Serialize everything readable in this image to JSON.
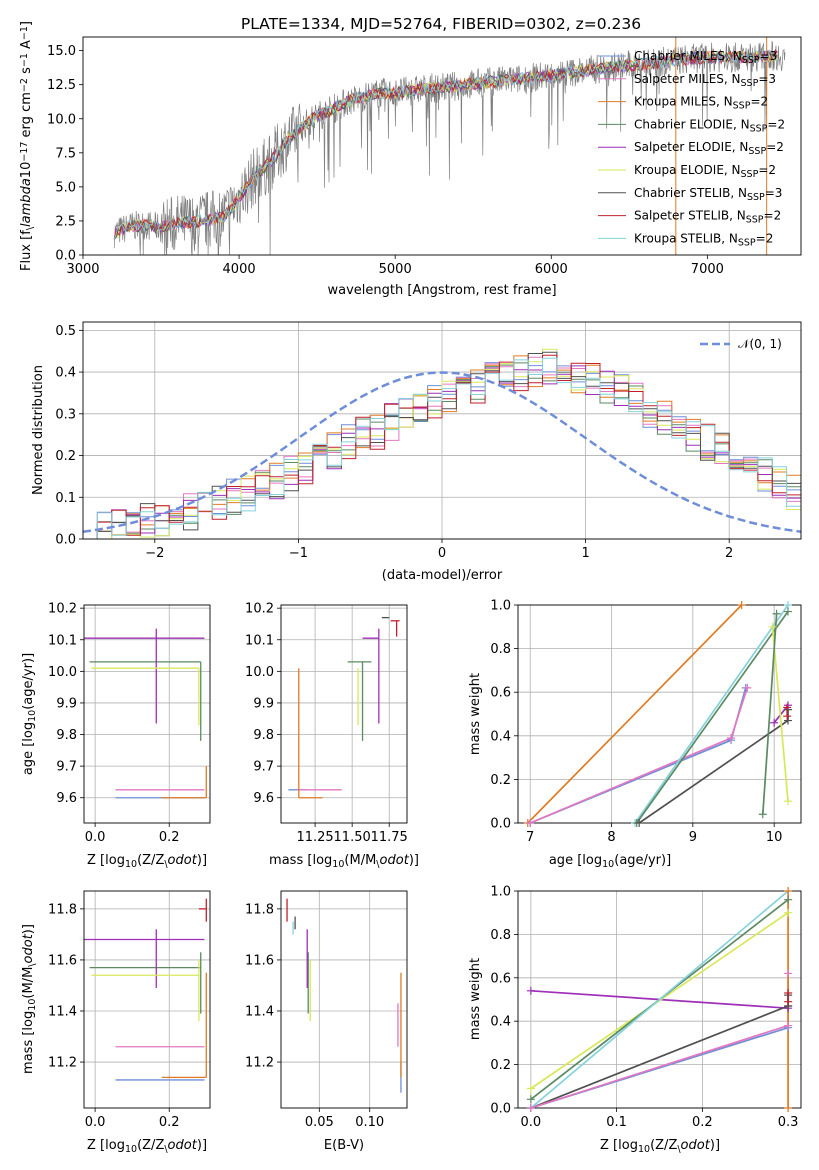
{
  "figure": {
    "title": "PLATE=1334, MJD=52764, FIBERID=0302, z=0.236"
  },
  "models": [
    {
      "name": "Chabrier MILES, N$_{SSP}$=3",
      "label": "Chabrier MILES, N",
      "n": "=3",
      "color": "#6f8ed9"
    },
    {
      "name": "Salpeter MILES, N$_{SSP}$=3",
      "label": "Salpeter MILES, N",
      "n": "=3",
      "color": "#e377c2"
    },
    {
      "name": "Kroupa MILES, N$_{SSP}$=2",
      "label": "Kroupa MILES, N",
      "n": "=2",
      "color": "#e07b24"
    },
    {
      "name": "Chabrier ELODIE, N$_{SSP}$=2",
      "label": "Chabrier ELODIE, N",
      "n": "=2",
      "color": "#5b8a63"
    },
    {
      "name": "Salpeter ELODIE, N$_{SSP}$=2",
      "label": "Salpeter ELODIE, N",
      "n": "=2",
      "color": "#9e2fb8"
    },
    {
      "name": "Kroupa ELODIE, N$_{SSP}$=2",
      "label": "Kroupa ELODIE, N",
      "n": "=2",
      "color": "#d8e85a"
    },
    {
      "name": "Chabrier STELIB, N$_{SSP}$=3",
      "label": "Chabrier STELIB, N",
      "n": "=3",
      "color": "#505050"
    },
    {
      "name": "Salpeter STELIB, N$_{SSP}$=2",
      "label": "Salpeter STELIB, N",
      "n": "=2",
      "color": "#c0202a"
    },
    {
      "name": "Kroupa STELIB, N$_{SSP}$=2",
      "label": "Kroupa STELIB, N",
      "n": "=2",
      "color": "#85d2dc"
    }
  ],
  "chart_data": [
    {
      "id": "spectrum",
      "type": "line",
      "xlabel": "wavelength [Angstrom, rest frame]",
      "ylabel": "Flux [f$_\\lambda$10$^{-17}$ erg cm$^{-2}$ s$^{-1}$ A$^{-1}$]",
      "xlim": [
        3000,
        7600
      ],
      "ylim": [
        0,
        16
      ],
      "xticks": [
        "3000",
        "4000",
        "5000",
        "6000",
        "7000"
      ],
      "yticks": [
        "0.0",
        "2.5",
        "5.0",
        "7.5",
        "10.0",
        "12.5",
        "15.0"
      ],
      "grid": false,
      "legend": "top-right",
      "data_color": "#7f7f7f",
      "continuum": {
        "x": [
          3200,
          3300,
          3400,
          3500,
          3600,
          3700,
          3800,
          3900,
          4000,
          4100,
          4200,
          4300,
          4400,
          4500,
          4600,
          4700,
          4800,
          4900,
          5000,
          5200,
          5400,
          5600,
          5800,
          6000,
          6200,
          6400,
          6600,
          6800,
          7000,
          7200,
          7400
        ],
        "y": [
          1.6,
          2.1,
          2.2,
          2.0,
          2.3,
          2.4,
          2.6,
          2.8,
          4.2,
          5.8,
          6.8,
          8.3,
          9.4,
          10.2,
          10.7,
          11.3,
          11.6,
          11.9,
          11.9,
          12.2,
          12.4,
          12.7,
          12.9,
          13.2,
          13.5,
          13.8,
          14.0,
          14.3,
          14.5,
          14.5,
          14.6
        ]
      },
      "sky_lines": [
        {
          "x": 6798,
          "y": 16
        },
        {
          "x": 7380,
          "y": 16
        }
      ]
    },
    {
      "id": "residuals",
      "type": "histogram",
      "xlabel": "(data-model)/error",
      "ylabel": "Normed distribution",
      "xlim": [
        -2.5,
        2.5
      ],
      "ylim": [
        0,
        0.52
      ],
      "xticks": [
        "−2",
        "−1",
        "0",
        "1",
        "2"
      ],
      "yticks": [
        "0.0",
        "0.1",
        "0.2",
        "0.3",
        "0.4",
        "0.5"
      ],
      "grid": true,
      "legend": "top-right",
      "reference": {
        "name": "$\\mathcal{N}(0,1)$",
        "label": "𝒩(0, 1)",
        "color": "#6f8ed9"
      },
      "bin_width": 0.1,
      "envelope": [
        0.02,
        0.025,
        0.03,
        0.035,
        0.04,
        0.045,
        0.055,
        0.065,
        0.075,
        0.09,
        0.1,
        0.11,
        0.13,
        0.14,
        0.16,
        0.17,
        0.19,
        0.21,
        0.23,
        0.25,
        0.26,
        0.28,
        0.3,
        0.31,
        0.33,
        0.34,
        0.36,
        0.37,
        0.38,
        0.39,
        0.4,
        0.41,
        0.41,
        0.4,
        0.39,
        0.38,
        0.36,
        0.35,
        0.33,
        0.31,
        0.29,
        0.27,
        0.25,
        0.23,
        0.21,
        0.19,
        0.17,
        0.15,
        0.13,
        0.11,
        0.1
      ]
    },
    {
      "id": "age-vs-Z",
      "type": "errorbar",
      "xlabel": "Z [log$_{10}$(Z/Z$_\\odot$)]",
      "ylabel": "age  [log$_{10}$(age/yr)]",
      "xlim": [
        -0.03,
        0.31
      ],
      "ylim": [
        9.52,
        10.21
      ],
      "xticks": [
        "0.0",
        "0.2"
      ],
      "yticks": [
        "9.6",
        "9.7",
        "9.8",
        "9.9",
        "10.0",
        "10.1",
        "10.2"
      ],
      "grid": true,
      "points": [
        {
          "model": 0,
          "x": 0.175,
          "y": 9.6,
          "xerr": [
            0.12,
            0.12
          ],
          "yerr": [
            0.0,
            0.0
          ]
        },
        {
          "model": 1,
          "x": 0.175,
          "y": 9.625,
          "xerr": [
            0.12,
            0.12
          ],
          "yerr": [
            0.0,
            0.0
          ]
        },
        {
          "model": 2,
          "x": 0.3,
          "y": 9.6,
          "xerr": [
            0.12,
            0.0
          ],
          "yerr": [
            0.0,
            0.1
          ]
        },
        {
          "model": 3,
          "x": 0.285,
          "y": 10.03,
          "xerr": [
            0.3,
            0.0
          ],
          "yerr": [
            0.25,
            0.0
          ]
        },
        {
          "model": 4,
          "x": 0.165,
          "y": 10.105,
          "xerr": [
            0.2,
            0.13
          ],
          "yerr": [
            0.27,
            0.03
          ]
        },
        {
          "model": 5,
          "x": 0.28,
          "y": 10.01,
          "xerr": [
            0.29,
            0.0
          ],
          "yerr": [
            0.18,
            0.0
          ]
        },
        {
          "model": 6,
          "x": 0.29,
          "y": 10.17,
          "xerr": [
            0.0,
            0.0
          ],
          "yerr": [
            0.0,
            0.0
          ]
        },
        {
          "model": 7,
          "x": 0.3,
          "y": 10.16,
          "xerr": [
            0.0,
            0.0
          ],
          "yerr": [
            0.0,
            0.0
          ]
        },
        {
          "model": 8,
          "x": 0.29,
          "y": 10.16,
          "xerr": [
            0.0,
            0.0
          ],
          "yerr": [
            0.0,
            0.0
          ]
        }
      ]
    },
    {
      "id": "age-vs-mass",
      "type": "errorbar",
      "xlabel": "mass [log$_{10}$(M/M$_\\odot$)]",
      "ylabel": "",
      "xlim": [
        11.02,
        11.87
      ],
      "ylim": [
        9.52,
        10.21
      ],
      "xticks": [
        "11.25",
        "11.50",
        "11.75"
      ],
      "yticks": [
        "9.6",
        "9.7",
        "9.8",
        "9.9",
        "10.0",
        "10.1",
        "10.2"
      ],
      "grid": true,
      "points": [
        {
          "model": 0,
          "x": 11.13,
          "y": 9.625,
          "xerr": [
            0.06,
            0.06
          ],
          "yerr": [
            0.0,
            0.0
          ]
        },
        {
          "model": 1,
          "x": 11.26,
          "y": 9.625,
          "xerr": [
            0.13,
            0.17
          ],
          "yerr": [
            0.0,
            0.0
          ]
        },
        {
          "model": 2,
          "x": 11.14,
          "y": 9.6,
          "xerr": [
            0.0,
            0.16
          ],
          "yerr": [
            0.0,
            0.41
          ]
        },
        {
          "model": 3,
          "x": 11.57,
          "y": 10.03,
          "xerr": [
            0.1,
            0.06
          ],
          "yerr": [
            0.25,
            0.0
          ]
        },
        {
          "model": 4,
          "x": 11.68,
          "y": 10.105,
          "xerr": [
            0.11,
            0.0
          ],
          "yerr": [
            0.27,
            0.03
          ]
        },
        {
          "model": 5,
          "x": 11.54,
          "y": 10.01,
          "xerr": [
            0.0,
            0.0
          ],
          "yerr": [
            0.18,
            0.0
          ]
        },
        {
          "model": 6,
          "x": 11.75,
          "y": 10.17,
          "xerr": [
            0.05,
            0.0
          ],
          "yerr": [
            0.0,
            0.0
          ]
        },
        {
          "model": 7,
          "x": 11.8,
          "y": 10.16,
          "xerr": [
            0.04,
            0.02
          ],
          "yerr": [
            0.05,
            0.0
          ]
        },
        {
          "model": 8,
          "x": 11.73,
          "y": 10.16,
          "xerr": [
            0.0,
            0.0
          ],
          "yerr": [
            0.0,
            0.0
          ]
        }
      ]
    },
    {
      "id": "massweight-vs-age",
      "type": "line",
      "xlabel": "age  [log$_{10}$(age/yr)]",
      "ylabel": "mass weight",
      "xlim": [
        6.85,
        10.33
      ],
      "ylim": [
        0,
        1
      ],
      "xticks": [
        "7",
        "8",
        "9",
        "10"
      ],
      "yticks": [
        "0.0",
        "0.2",
        "0.4",
        "0.6",
        "0.8",
        "1.0"
      ],
      "grid": true,
      "series": [
        {
          "model": 2,
          "x": [
            6.97,
            9.6
          ],
          "y": [
            0.0,
            1.0
          ]
        },
        {
          "model": 0,
          "x": [
            7.0,
            9.47,
            9.65
          ],
          "y": [
            0.0,
            0.38,
            0.62
          ]
        },
        {
          "model": 1,
          "x": [
            7.0,
            9.47,
            9.67
          ],
          "y": [
            0.0,
            0.39,
            0.62
          ]
        },
        {
          "model": 8,
          "x": [
            8.29,
            10.17
          ],
          "y": [
            0.0,
            1.0
          ]
        },
        {
          "model": 3,
          "x": [
            8.31,
            10.17
          ],
          "y": [
            0.0,
            0.97
          ]
        },
        {
          "model": 6,
          "x": [
            8.34,
            10.17,
            10.17
          ],
          "y": [
            0.0,
            0.47,
            0.52
          ]
        },
        {
          "model": 4,
          "x": [
            10.0,
            10.17
          ],
          "y": [
            0.46,
            0.54
          ]
        },
        {
          "model": 5,
          "x": [
            9.98,
            10.17
          ],
          "y": [
            0.9,
            0.1
          ]
        },
        {
          "model": 3,
          "x": [
            9.86,
            10.03
          ],
          "y": [
            0.04,
            0.96
          ]
        },
        {
          "model": 7,
          "x": [
            10.16,
            10.16
          ],
          "y": [
            0.49,
            0.53
          ]
        }
      ]
    },
    {
      "id": "mass-vs-Z",
      "type": "errorbar",
      "xlabel": "Z [log$_{10}$(Z/Z$_\\odot$)]",
      "ylabel": "mass [log$_{10}$(M/M$_\\odot$)]",
      "xlim": [
        -0.03,
        0.31
      ],
      "ylim": [
        11.02,
        11.87
      ],
      "xticks": [
        "0.0",
        "0.2"
      ],
      "yticks": [
        "11.2",
        "11.4",
        "11.6",
        "11.8"
      ],
      "grid": true,
      "points": [
        {
          "model": 0,
          "x": 0.175,
          "y": 11.13,
          "xerr": [
            0.12,
            0.12
          ],
          "yerr": [
            0.0,
            0.0
          ]
        },
        {
          "model": 1,
          "x": 0.175,
          "y": 11.26,
          "xerr": [
            0.12,
            0.12
          ],
          "yerr": [
            0.0,
            0.0
          ]
        },
        {
          "model": 2,
          "x": 0.3,
          "y": 11.14,
          "xerr": [
            0.12,
            0.0
          ],
          "yerr": [
            0.0,
            0.41
          ]
        },
        {
          "model": 3,
          "x": 0.285,
          "y": 11.57,
          "xerr": [
            0.3,
            0.0
          ],
          "yerr": [
            0.18,
            0.06
          ]
        },
        {
          "model": 4,
          "x": 0.165,
          "y": 11.68,
          "xerr": [
            0.2,
            0.13
          ],
          "yerr": [
            0.19,
            0.04
          ]
        },
        {
          "model": 5,
          "x": 0.28,
          "y": 11.54,
          "xerr": [
            0.29,
            0.0
          ],
          "yerr": [
            0.18,
            0.06
          ]
        },
        {
          "model": 6,
          "x": 0.29,
          "y": 11.75,
          "xerr": [
            0.0,
            0.0
          ],
          "yerr": [
            0.0,
            0.0
          ]
        },
        {
          "model": 7,
          "x": 0.3,
          "y": 11.8,
          "xerr": [
            0.02,
            0.0
          ],
          "yerr": [
            0.05,
            0.04
          ]
        },
        {
          "model": 8,
          "x": 0.29,
          "y": 11.73,
          "xerr": [
            0.0,
            0.0
          ],
          "yerr": [
            0.0,
            0.0
          ]
        }
      ]
    },
    {
      "id": "mass-vs-ebv",
      "type": "errorbar",
      "xlabel": "E(B-V)",
      "ylabel": "",
      "xlim": [
        0.012,
        0.137
      ],
      "ylim": [
        11.02,
        11.87
      ],
      "xticks": [
        "0.05",
        "0.10"
      ],
      "yticks": [
        "11.2",
        "11.4",
        "11.6",
        "11.8"
      ],
      "grid": true,
      "points": [
        {
          "model": 0,
          "x": 0.131,
          "y": 11.14,
          "xerr": [
            0.0,
            0.0
          ],
          "yerr": [
            0.06,
            0.06
          ]
        },
        {
          "model": 1,
          "x": 0.128,
          "y": 11.26,
          "xerr": [
            0.0,
            0.0
          ],
          "yerr": [
            0.0,
            0.17
          ]
        },
        {
          "model": 2,
          "x": 0.131,
          "y": 11.14,
          "xerr": [
            0.0,
            0.0
          ],
          "yerr": [
            0.0,
            0.41
          ]
        },
        {
          "model": 3,
          "x": 0.039,
          "y": 11.57,
          "xerr": [
            0.0,
            0.0
          ],
          "yerr": [
            0.18,
            0.06
          ]
        },
        {
          "model": 4,
          "x": 0.038,
          "y": 11.68,
          "xerr": [
            0.0,
            0.0
          ],
          "yerr": [
            0.19,
            0.04
          ]
        },
        {
          "model": 5,
          "x": 0.041,
          "y": 11.54,
          "xerr": [
            0.0,
            0.0
          ],
          "yerr": [
            0.18,
            0.06
          ]
        },
        {
          "model": 6,
          "x": 0.026,
          "y": 11.75,
          "xerr": [
            0.0,
            0.0
          ],
          "yerr": [
            0.03,
            0.02
          ]
        },
        {
          "model": 7,
          "x": 0.018,
          "y": 11.8,
          "xerr": [
            0.0,
            0.0
          ],
          "yerr": [
            0.05,
            0.04
          ]
        },
        {
          "model": 8,
          "x": 0.024,
          "y": 11.73,
          "xerr": [
            0.0,
            0.0
          ],
          "yerr": [
            0.03,
            0.02
          ]
        }
      ]
    },
    {
      "id": "massweight-vs-Z",
      "type": "line",
      "xlabel": "Z [log$_{10}$(Z/Z$_\\odot$)]",
      "ylabel": "mass weight",
      "xlim": [
        -0.015,
        0.315
      ],
      "ylim": [
        0,
        1
      ],
      "xticks": [
        "0.0",
        "0.1",
        "0.2",
        "0.3"
      ],
      "yticks": [
        "0.0",
        "0.2",
        "0.4",
        "0.6",
        "0.8",
        "1.0"
      ],
      "grid": true,
      "series": [
        {
          "model": 4,
          "x": [
            0.0,
            0.3
          ],
          "y": [
            0.54,
            0.46
          ]
        },
        {
          "model": 5,
          "x": [
            0.0,
            0.3
          ],
          "y": [
            0.09,
            0.9
          ]
        },
        {
          "model": 3,
          "x": [
            0.0,
            0.3
          ],
          "y": [
            0.04,
            0.96
          ]
        },
        {
          "model": 6,
          "x": [
            0.0,
            0.3
          ],
          "y": [
            0.0,
            0.47
          ]
        },
        {
          "model": 8,
          "x": [
            0.0,
            0.3
          ],
          "y": [
            0.0,
            1.0
          ]
        },
        {
          "model": 0,
          "x": [
            0.0,
            0.3
          ],
          "y": [
            0.0,
            0.37
          ]
        },
        {
          "model": 1,
          "x": [
            0.0,
            0.3,
            0.3
          ],
          "y": [
            0.0,
            0.38,
            0.62
          ]
        },
        {
          "model": 2,
          "x": [
            0.3,
            0.3
          ],
          "y": [
            0.0,
            1.0
          ]
        },
        {
          "model": 6,
          "x": [
            0.3,
            0.3
          ],
          "y": [
            0.47,
            0.52
          ]
        },
        {
          "model": 7,
          "x": [
            0.3,
            0.3
          ],
          "y": [
            0.49,
            0.53
          ]
        }
      ]
    }
  ]
}
